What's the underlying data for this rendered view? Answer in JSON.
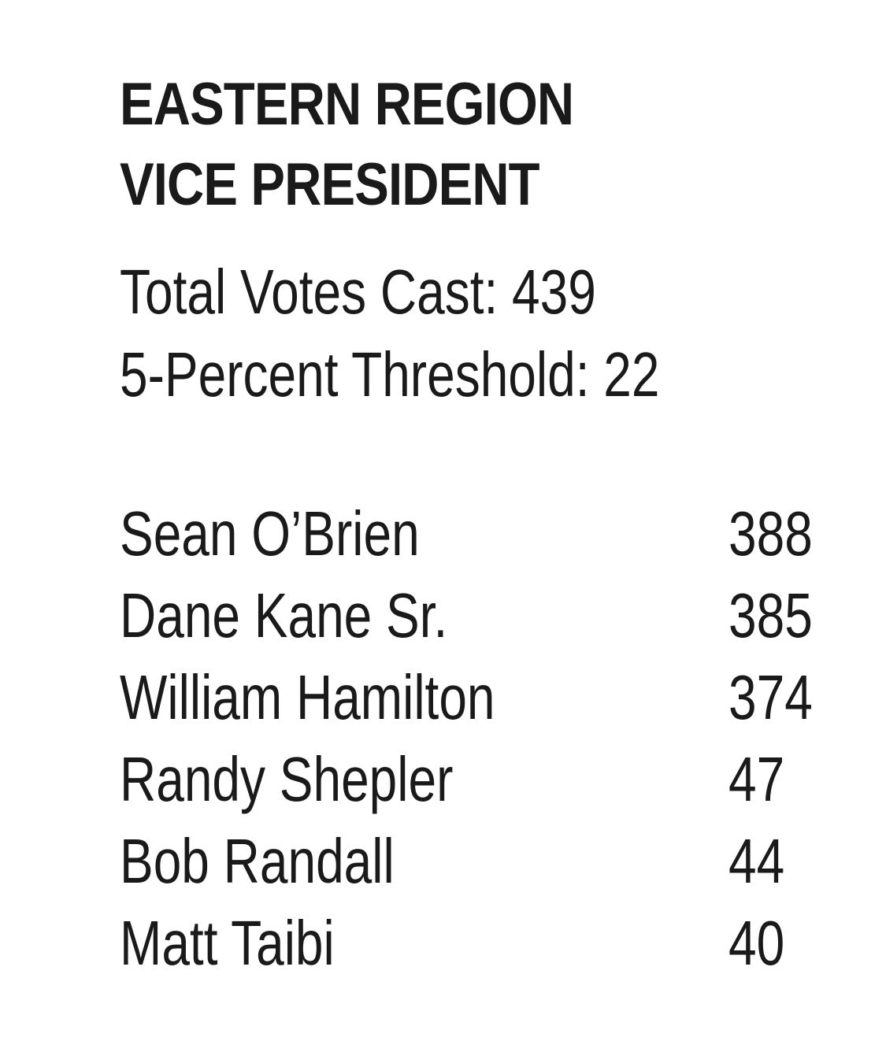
{
  "title": {
    "line1": "EASTERN REGION",
    "line2": "VICE PRESIDENT"
  },
  "stats": {
    "total_votes": "Total Votes Cast: 439",
    "threshold": "5-Percent Threshold: 22"
  },
  "results": [
    {
      "name": "Sean O’Brien",
      "votes": "388"
    },
    {
      "name": "Dane Kane Sr.",
      "votes": "385"
    },
    {
      "name": "William Hamilton",
      "votes": "374"
    },
    {
      "name": "Randy Shepler",
      "votes": "47"
    },
    {
      "name": "Bob Randall",
      "votes": "44"
    },
    {
      "name": "Matt Taibi",
      "votes": "40"
    }
  ]
}
